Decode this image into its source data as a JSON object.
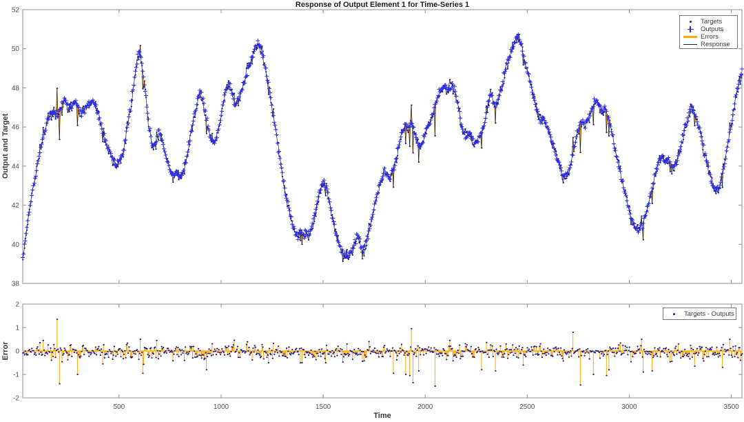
{
  "figure": {
    "noise_seed": 20240901,
    "colors": {
      "targets": "#17179b",
      "outputs": "#2b2be6",
      "errors": "#ffa500",
      "response": "#1c1c1c",
      "axis": "#8c8c8c",
      "tick_text": "#4f4f4f"
    }
  },
  "chart_data": [
    {
      "type": "line",
      "title": "Response of Output Element 1 for Time-Series 1",
      "ylabel": "Output and Target",
      "xlim": [
        28,
        3552
      ],
      "ylim": [
        38,
        52
      ],
      "xticks": [
        500,
        1000,
        1500,
        2000,
        2500,
        3000,
        3500
      ],
      "yticks": [
        38,
        40,
        42,
        44,
        46,
        48,
        50,
        52
      ],
      "grid": false,
      "legend_position": "upper-right",
      "legend": [
        {
          "label": "Targets",
          "marker": "dot"
        },
        {
          "label": "Outputs",
          "marker": "plus"
        },
        {
          "label": "Errors",
          "marker": "thick-line"
        },
        {
          "label": "Response",
          "marker": "thin-line"
        }
      ],
      "sample_step": 4,
      "target_noise_sd": 0.16,
      "output_noise_sd": 0.09,
      "series_keypoints": [
        [
          28,
          39.3
        ],
        [
          40,
          40.3
        ],
        [
          55,
          41.4
        ],
        [
          75,
          42.7
        ],
        [
          100,
          44.1
        ],
        [
          125,
          45.4
        ],
        [
          150,
          46.4
        ],
        [
          170,
          46.8
        ],
        [
          185,
          46.7
        ],
        [
          200,
          46.6
        ],
        [
          215,
          46.9
        ],
        [
          230,
          47.4
        ],
        [
          245,
          47.2
        ],
        [
          258,
          46.9
        ],
        [
          270,
          47.1
        ],
        [
          285,
          47.3
        ],
        [
          300,
          47.0
        ],
        [
          315,
          46.7
        ],
        [
          330,
          46.9
        ],
        [
          350,
          47.2
        ],
        [
          365,
          47.3
        ],
        [
          382,
          47.2
        ],
        [
          400,
          46.6
        ],
        [
          420,
          45.8
        ],
        [
          440,
          45.1
        ],
        [
          460,
          44.6
        ],
        [
          475,
          44.2
        ],
        [
          490,
          44.1
        ],
        [
          505,
          44.3
        ],
        [
          520,
          44.8
        ],
        [
          535,
          45.6
        ],
        [
          550,
          46.6
        ],
        [
          565,
          47.7
        ],
        [
          580,
          48.8
        ],
        [
          590,
          49.5
        ],
        [
          598,
          49.9
        ],
        [
          608,
          49.5
        ],
        [
          620,
          48.6
        ],
        [
          632,
          47.4
        ],
        [
          645,
          46.2
        ],
        [
          658,
          45.3
        ],
        [
          670,
          44.9
        ],
        [
          682,
          45.2
        ],
        [
          695,
          45.8
        ],
        [
          708,
          45.4
        ],
        [
          722,
          44.8
        ],
        [
          738,
          44.2
        ],
        [
          755,
          43.7
        ],
        [
          772,
          43.5
        ],
        [
          785,
          43.7
        ],
        [
          798,
          43.4
        ],
        [
          812,
          43.7
        ],
        [
          828,
          44.3
        ],
        [
          845,
          45.2
        ],
        [
          862,
          46.2
        ],
        [
          880,
          47.2
        ],
        [
          895,
          47.8
        ],
        [
          908,
          47.6
        ],
        [
          922,
          46.8
        ],
        [
          938,
          45.9
        ],
        [
          953,
          45.4
        ],
        [
          968,
          45.2
        ],
        [
          983,
          45.7
        ],
        [
          998,
          46.5
        ],
        [
          1015,
          47.5
        ],
        [
          1030,
          48.1
        ],
        [
          1042,
          48.2
        ],
        [
          1055,
          47.6
        ],
        [
          1068,
          47.1
        ],
        [
          1082,
          47.3
        ],
        [
          1098,
          47.8
        ],
        [
          1115,
          48.4
        ],
        [
          1135,
          49.1
        ],
        [
          1155,
          49.7
        ],
        [
          1172,
          50.1
        ],
        [
          1186,
          50.3
        ],
        [
          1202,
          49.8
        ],
        [
          1220,
          48.9
        ],
        [
          1238,
          47.8
        ],
        [
          1256,
          46.6
        ],
        [
          1274,
          45.4
        ],
        [
          1292,
          44.2
        ],
        [
          1310,
          43.0
        ],
        [
          1328,
          42.0
        ],
        [
          1346,
          41.2
        ],
        [
          1362,
          40.6
        ],
        [
          1376,
          40.4
        ],
        [
          1388,
          40.7
        ],
        [
          1400,
          40.4
        ],
        [
          1414,
          40.7
        ],
        [
          1428,
          40.4
        ],
        [
          1442,
          40.8
        ],
        [
          1458,
          41.5
        ],
        [
          1474,
          42.3
        ],
        [
          1492,
          43.0
        ],
        [
          1505,
          43.2
        ],
        [
          1518,
          42.8
        ],
        [
          1534,
          42.0
        ],
        [
          1550,
          41.2
        ],
        [
          1567,
          40.4
        ],
        [
          1584,
          39.8
        ],
        [
          1602,
          39.5
        ],
        [
          1620,
          39.4
        ],
        [
          1637,
          39.6
        ],
        [
          1654,
          40.1
        ],
        [
          1667,
          40.5
        ],
        [
          1680,
          40.1
        ],
        [
          1692,
          39.7
        ],
        [
          1704,
          39.9
        ],
        [
          1718,
          40.4
        ],
        [
          1734,
          41.1
        ],
        [
          1750,
          41.9
        ],
        [
          1767,
          42.7
        ],
        [
          1784,
          43.3
        ],
        [
          1798,
          43.7
        ],
        [
          1812,
          43.6
        ],
        [
          1826,
          43.4
        ],
        [
          1840,
          43.7
        ],
        [
          1854,
          44.3
        ],
        [
          1870,
          45.0
        ],
        [
          1887,
          45.7
        ],
        [
          1902,
          46.2
        ],
        [
          1917,
          45.9
        ],
        [
          1930,
          46.2
        ],
        [
          1942,
          46.0
        ],
        [
          1956,
          45.4
        ],
        [
          1970,
          45.0
        ],
        [
          1984,
          45.1
        ],
        [
          1998,
          45.6
        ],
        [
          2012,
          46.0
        ],
        [
          2026,
          46.3
        ],
        [
          2040,
          46.7
        ],
        [
          2054,
          47.3
        ],
        [
          2068,
          47.8
        ],
        [
          2084,
          48.0
        ],
        [
          2100,
          48.1
        ],
        [
          2116,
          47.9
        ],
        [
          2132,
          48.2
        ],
        [
          2147,
          47.9
        ],
        [
          2160,
          47.2
        ],
        [
          2174,
          46.3
        ],
        [
          2188,
          45.7
        ],
        [
          2202,
          45.5
        ],
        [
          2216,
          45.6
        ],
        [
          2230,
          45.4
        ],
        [
          2244,
          45.2
        ],
        [
          2258,
          45.3
        ],
        [
          2272,
          45.6
        ],
        [
          2288,
          46.1
        ],
        [
          2304,
          46.9
        ],
        [
          2318,
          47.7
        ],
        [
          2330,
          47.5
        ],
        [
          2342,
          47.0
        ],
        [
          2354,
          47.3
        ],
        [
          2370,
          47.9
        ],
        [
          2387,
          48.6
        ],
        [
          2404,
          49.3
        ],
        [
          2422,
          49.9
        ],
        [
          2440,
          50.4
        ],
        [
          2454,
          50.7
        ],
        [
          2468,
          50.3
        ],
        [
          2484,
          49.6
        ],
        [
          2502,
          48.8
        ],
        [
          2520,
          48.0
        ],
        [
          2537,
          47.3
        ],
        [
          2552,
          46.7
        ],
        [
          2564,
          46.3
        ],
        [
          2577,
          46.5
        ],
        [
          2590,
          46.2
        ],
        [
          2604,
          45.8
        ],
        [
          2620,
          45.3
        ],
        [
          2637,
          44.7
        ],
        [
          2654,
          44.2
        ],
        [
          2670,
          43.7
        ],
        [
          2684,
          43.4
        ],
        [
          2698,
          43.6
        ],
        [
          2712,
          44.1
        ],
        [
          2727,
          44.8
        ],
        [
          2742,
          45.5
        ],
        [
          2757,
          46.1
        ],
        [
          2770,
          46.3
        ],
        [
          2784,
          46.1
        ],
        [
          2798,
          46.4
        ],
        [
          2812,
          46.8
        ],
        [
          2827,
          47.2
        ],
        [
          2842,
          47.4
        ],
        [
          2854,
          47.1
        ],
        [
          2867,
          46.7
        ],
        [
          2880,
          47.0
        ],
        [
          2894,
          46.6
        ],
        [
          2908,
          46.0
        ],
        [
          2924,
          45.2
        ],
        [
          2940,
          44.4
        ],
        [
          2957,
          43.6
        ],
        [
          2974,
          42.8
        ],
        [
          2992,
          42.1
        ],
        [
          3010,
          41.4
        ],
        [
          3028,
          40.9
        ],
        [
          3046,
          40.75
        ],
        [
          3064,
          41.0
        ],
        [
          3082,
          41.6
        ],
        [
          3100,
          42.4
        ],
        [
          3118,
          43.2
        ],
        [
          3134,
          43.9
        ],
        [
          3148,
          44.4
        ],
        [
          3162,
          44.5
        ],
        [
          3176,
          44.2
        ],
        [
          3190,
          44.4
        ],
        [
          3204,
          44.1
        ],
        [
          3218,
          43.9
        ],
        [
          3232,
          44.2
        ],
        [
          3247,
          44.8
        ],
        [
          3264,
          45.6
        ],
        [
          3282,
          46.3
        ],
        [
          3297,
          46.9
        ],
        [
          3310,
          47.0
        ],
        [
          3324,
          46.6
        ],
        [
          3340,
          46.0
        ],
        [
          3357,
          45.3
        ],
        [
          3374,
          44.5
        ],
        [
          3392,
          43.7
        ],
        [
          3410,
          43.0
        ],
        [
          3426,
          42.7
        ],
        [
          3442,
          43.0
        ],
        [
          3458,
          43.7
        ],
        [
          3474,
          44.6
        ],
        [
          3492,
          45.7
        ],
        [
          3510,
          46.8
        ],
        [
          3528,
          47.9
        ],
        [
          3544,
          48.6
        ],
        [
          3552,
          48.8
        ]
      ]
    },
    {
      "type": "stem",
      "ylabel": "Error",
      "xlabel": "Time",
      "xlim": [
        28,
        3552
      ],
      "ylim": [
        -2,
        2
      ],
      "xticks": [
        500,
        1000,
        1500,
        2000,
        2500,
        3000,
        3500
      ],
      "yticks": [
        -2,
        -1,
        0,
        1,
        2
      ],
      "grid": false,
      "legend_position": "upper-right",
      "legend": [
        {
          "label": "Targets - Outputs",
          "marker": "dot"
        }
      ],
      "noise_sd": 0.16,
      "noise_bias": -0.05,
      "noise_clip": [
        -0.6,
        0.5
      ],
      "spikes": [
        [
          126,
          0.45
        ],
        [
          196,
          1.35
        ],
        [
          206,
          -1.4
        ],
        [
          294,
          -1.0
        ],
        [
          420,
          -0.55
        ],
        [
          604,
          0.5
        ],
        [
          614,
          -0.95
        ],
        [
          682,
          0.45
        ],
        [
          928,
          -0.8
        ],
        [
          1230,
          -0.5
        ],
        [
          1396,
          -0.5
        ],
        [
          1512,
          -0.5
        ],
        [
          1725,
          0.4
        ],
        [
          1845,
          -0.95
        ],
        [
          1905,
          -1.0
        ],
        [
          1922,
          -1.05
        ],
        [
          1932,
          0.95
        ],
        [
          1938,
          -1.35
        ],
        [
          1966,
          -0.85
        ],
        [
          2047,
          -1.5
        ],
        [
          2120,
          0.45
        ],
        [
          2276,
          -0.8
        ],
        [
          2343,
          -0.85
        ],
        [
          2480,
          -0.6
        ],
        [
          2724,
          0.8
        ],
        [
          2758,
          -1.45
        ],
        [
          2825,
          -1.0
        ],
        [
          2889,
          -1.05
        ],
        [
          2900,
          -0.8
        ],
        [
          3058,
          0.5
        ],
        [
          3068,
          -0.9
        ],
        [
          3112,
          -0.85
        ],
        [
          3320,
          -0.65
        ],
        [
          3456,
          -0.7
        ],
        [
          3492,
          0.5
        ]
      ]
    }
  ]
}
